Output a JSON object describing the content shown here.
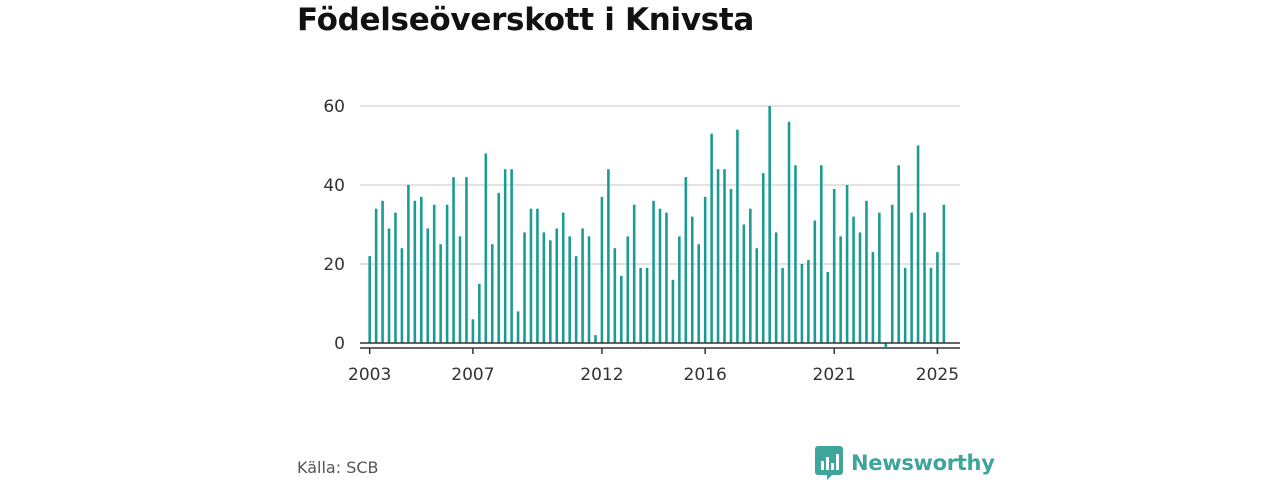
{
  "title": "Födelseöverskott i Knivsta",
  "source": "Källa: SCB",
  "brand": "Newsworthy",
  "colors": {
    "bar": "#1a9b93",
    "grid": "#d9d9d9",
    "baseline": "#333333"
  },
  "chart_data": {
    "type": "bar",
    "title": "Födelseöverskott i Knivsta",
    "xlabel": "",
    "ylabel": "",
    "ylim": [
      0,
      60
    ],
    "yticks": [
      0,
      20,
      40,
      60
    ],
    "xlim": [
      2002.75,
      2026.0
    ],
    "xticks": [
      {
        "label": "2003",
        "value": 2003.125
      },
      {
        "label": "2007",
        "value": 2007.125
      },
      {
        "label": "2012",
        "value": 2012.125
      },
      {
        "label": "2016",
        "value": 2016.125
      },
      {
        "label": "2021",
        "value": 2021.125
      },
      {
        "label": "2025",
        "value": 2025.125
      }
    ],
    "grid": true,
    "bar_width_years": 0.1,
    "start_label": "2003",
    "periods_per_year": 4,
    "values": [
      22,
      34,
      36,
      29,
      33,
      24,
      40,
      36,
      37,
      29,
      35,
      25,
      35,
      42,
      27,
      42,
      6,
      15,
      48,
      25,
      38,
      44,
      44,
      8,
      28,
      34,
      34,
      28,
      26,
      29,
      33,
      27,
      22,
      29,
      27,
      2,
      37,
      44,
      24,
      17,
      27,
      35,
      19,
      19,
      36,
      34,
      33,
      16,
      27,
      42,
      32,
      25,
      37,
      53,
      44,
      44,
      39,
      54,
      30,
      34,
      24,
      43,
      60,
      28,
      19,
      56,
      45,
      20,
      21,
      31,
      45,
      18,
      39,
      27,
      40,
      32,
      28,
      36,
      23,
      33,
      -1,
      35,
      45,
      19,
      33,
      50,
      33,
      19,
      23,
      35
    ]
  }
}
